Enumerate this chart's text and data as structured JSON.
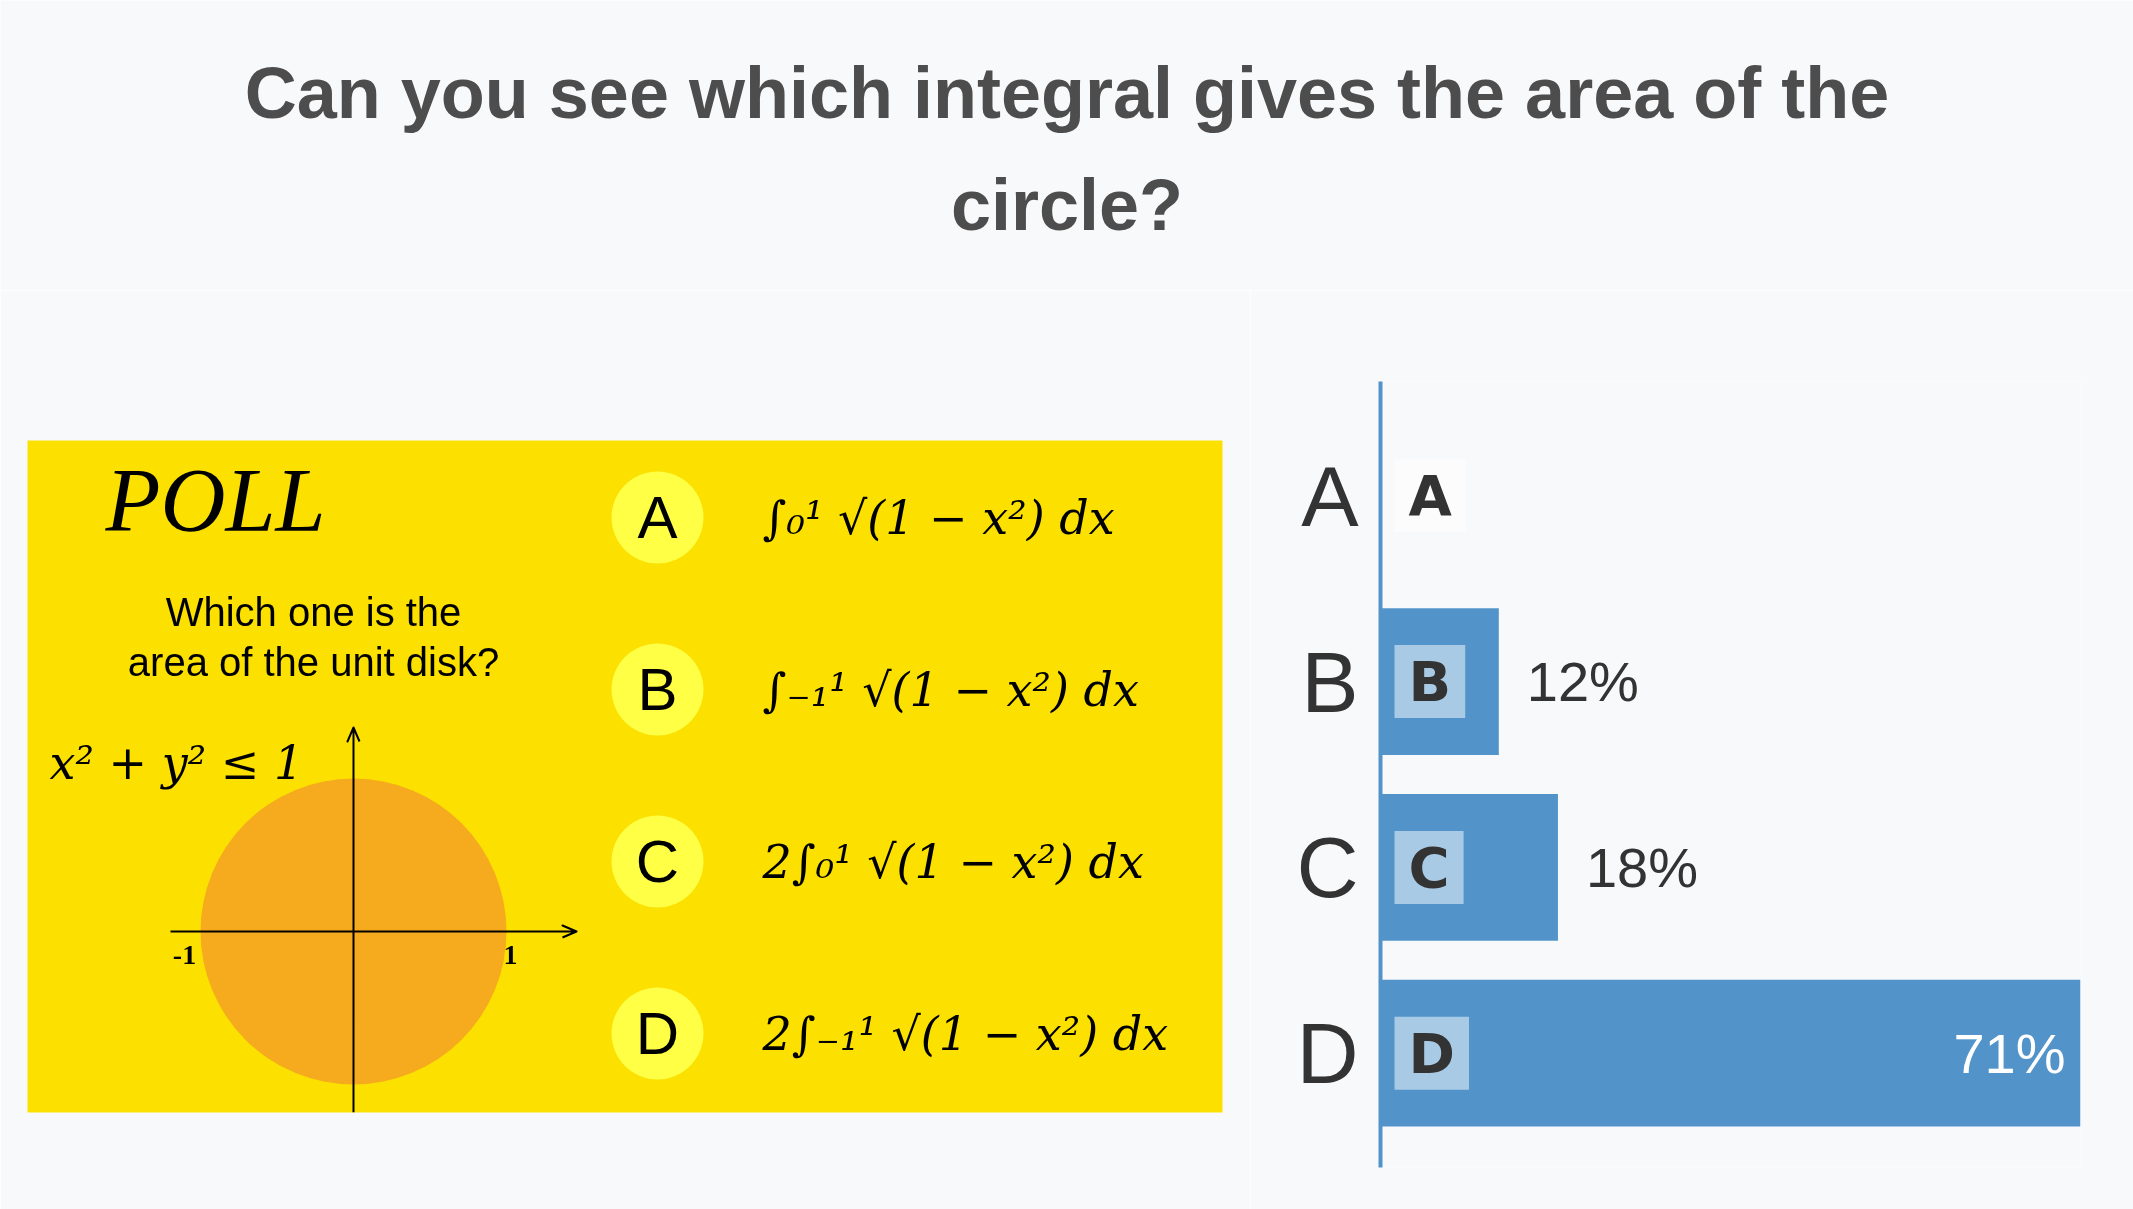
{
  "chart_data": [
    {
      "type": "other",
      "title": "POLL",
      "subtitle": "Which one is the area of the unit disk?",
      "annotations": [
        "x² + y² ≤ 1",
        "-1",
        "1",
        "A",
        "∫₀¹ √(1 − x²) dx",
        "B",
        "∫₋₁¹ √(1 − x²) dx",
        "C",
        "2∫₀¹ √(1 − x²) dx",
        "D",
        "2∫₋₁¹ √(1 − x²) dx"
      ]
    },
    {
      "type": "bar",
      "orientation": "horizontal",
      "title": "Can you see which integral gives the area of the circle?",
      "categories": [
        "A",
        "B",
        "C",
        "D"
      ],
      "values": [
        0,
        12,
        18,
        71
      ],
      "value_labels": [
        null,
        "12%",
        "18%",
        "71%"
      ],
      "color": "#5294c9"
    }
  ]
}
